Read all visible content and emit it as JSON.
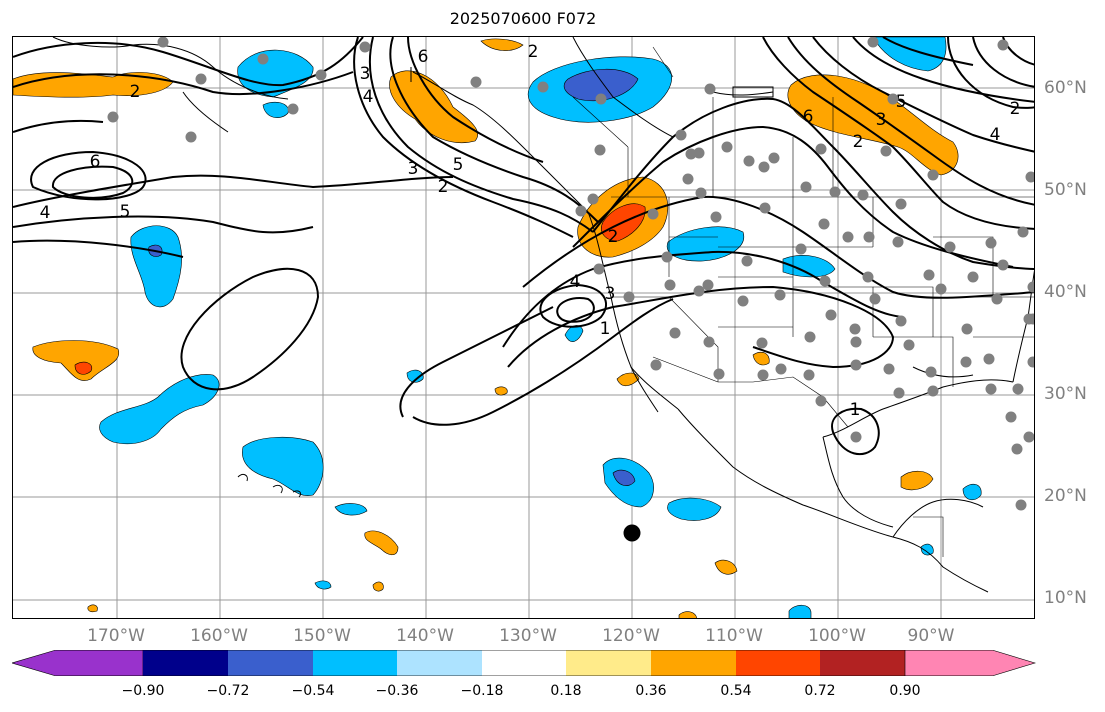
{
  "title": "2025070600 F072",
  "map": {
    "longitude_labels": [
      "170°W",
      "160°W",
      "150°W",
      "140°W",
      "130°W",
      "120°W",
      "110°W",
      "100°W",
      "90°W"
    ],
    "latitude_labels": [
      "60°N",
      "50°N",
      "40°N",
      "30°N",
      "20°N",
      "10°N"
    ],
    "contour_labels": [
      "2",
      "4",
      "6",
      "5",
      "4",
      "6",
      "3",
      "2",
      "5",
      "3",
      "2",
      "4",
      "3",
      "2",
      "1",
      "6",
      "3",
      "5",
      "2",
      "4",
      "2",
      "1"
    ],
    "colors": {
      "strong_negative": "#9932CC",
      "neg_090": "#00008B",
      "neg_072": "#3A5FCD",
      "neg_054": "#00BFFF",
      "neg_036": "#ADE3FF",
      "neutral": "#FFFFFF",
      "pos_018": "#FFEB8A",
      "pos_036": "#FFA500",
      "pos_054": "#FF4500",
      "pos_072": "#B22222",
      "pos_090": "#FF85B3",
      "station_dot": "#808080",
      "marker": "#000000"
    }
  },
  "colorbar": {
    "ticks": [
      "−0.90",
      "−0.72",
      "−0.54",
      "−0.36",
      "−0.18",
      "0.18",
      "0.36",
      "0.54",
      "0.72",
      "0.90"
    ],
    "colors": [
      "#9932CC",
      "#00008B",
      "#3A5FCD",
      "#00BFFF",
      "#ADE3FF",
      "#FFFFFF",
      "#FFEB8A",
      "#FFA500",
      "#FF4500",
      "#B22222",
      "#FF85B3"
    ]
  }
}
